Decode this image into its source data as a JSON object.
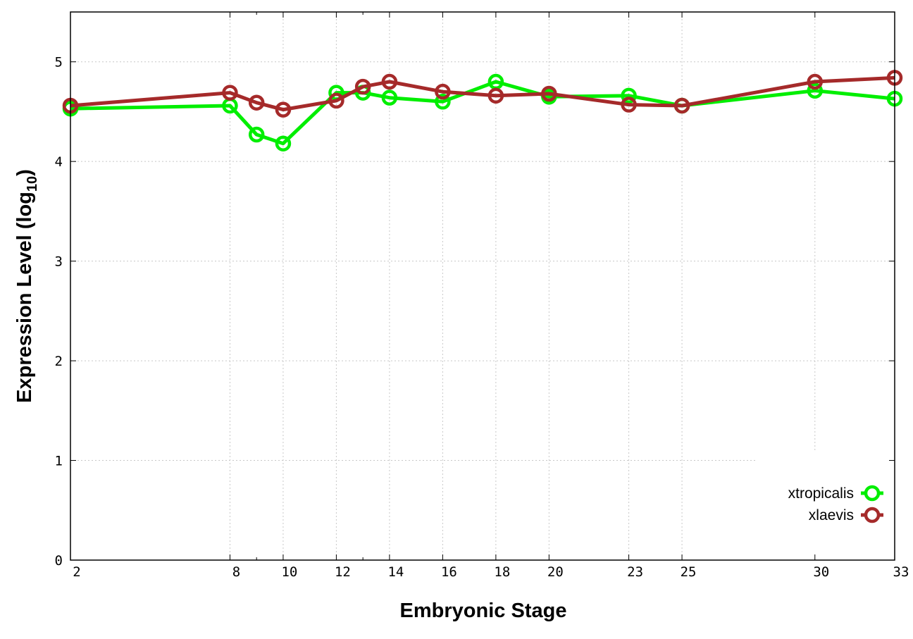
{
  "chart_data": {
    "type": "line",
    "xlabel": "Embryonic Stage",
    "ylabel_main": "Expression Level (log",
    "ylabel_sub": "10",
    "ylabel_close": ")",
    "xlim": [
      2,
      33
    ],
    "ylim": [
      0,
      5.5
    ],
    "x_ticks": [
      2,
      8,
      10,
      12,
      14,
      16,
      18,
      20,
      23,
      25,
      30,
      33
    ],
    "x_minor_ticks": [
      9,
      13
    ],
    "y_ticks": [
      0,
      1,
      2,
      3,
      4,
      5
    ],
    "grid": true,
    "legend_position": "bottom-right",
    "x": [
      2,
      8,
      9,
      10,
      12,
      13,
      14,
      16,
      18,
      20,
      23,
      25,
      30,
      33
    ],
    "series": [
      {
        "name": "xtropicalis",
        "color": "#00ee00",
        "values": [
          4.53,
          4.56,
          4.27,
          4.18,
          4.69,
          4.69,
          4.64,
          4.6,
          4.8,
          4.65,
          4.66,
          4.56,
          4.71,
          4.63
        ]
      },
      {
        "name": "xlaevis",
        "color": "#a52a2a",
        "values": [
          4.56,
          4.69,
          4.59,
          4.52,
          4.61,
          4.75,
          4.8,
          4.7,
          4.66,
          4.68,
          4.57,
          4.56,
          4.8,
          4.84
        ]
      }
    ]
  }
}
